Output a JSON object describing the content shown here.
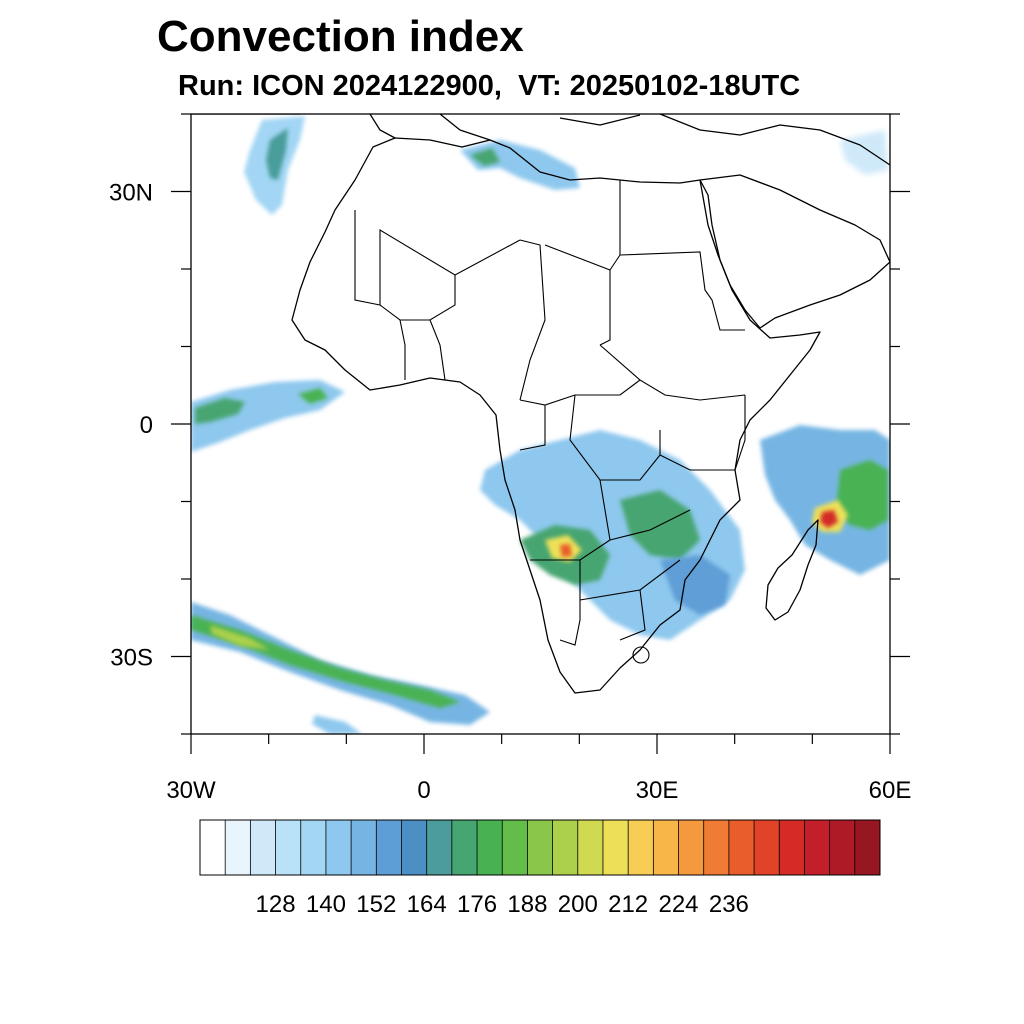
{
  "figure": {
    "title": "Convection index",
    "subtitle": "Run: ICON 2024122900,  VT: 20250102-18UTC"
  },
  "axes": {
    "lat_labels": [
      {
        "lat": 30,
        "text": "30N"
      },
      {
        "lat": 0,
        "text": "0"
      },
      {
        "lat": -30,
        "text": "30S"
      }
    ],
    "lon_labels": [
      {
        "lon": -30,
        "text": "30W"
      },
      {
        "lon": 0,
        "text": "0"
      },
      {
        "lon": 30,
        "text": "30E"
      },
      {
        "lon": 60,
        "text": "60E"
      }
    ],
    "lon_range": [
      -30,
      60
    ],
    "lat_range": [
      -40,
      40
    ]
  },
  "colorbar": {
    "colors": [
      "#ffffff",
      "#e8f5fd",
      "#cfe9f9",
      "#b9e1f7",
      "#a2d6f4",
      "#8ec8ee",
      "#76b5e3",
      "#5e9ed6",
      "#4c8fc4",
      "#4a9d9a",
      "#46a571",
      "#48b252",
      "#62bd4a",
      "#89c64a",
      "#acd04c",
      "#d0da50",
      "#ede058",
      "#f8cd55",
      "#f8b548",
      "#f5993e",
      "#ef7b34",
      "#e95c2c",
      "#e04328",
      "#d42b27",
      "#c21f2a",
      "#ae1a26",
      "#961622"
    ],
    "tick_labels": [
      "128",
      "140",
      "152",
      "164",
      "176",
      "188",
      "200",
      "212",
      "224",
      "236"
    ]
  }
}
